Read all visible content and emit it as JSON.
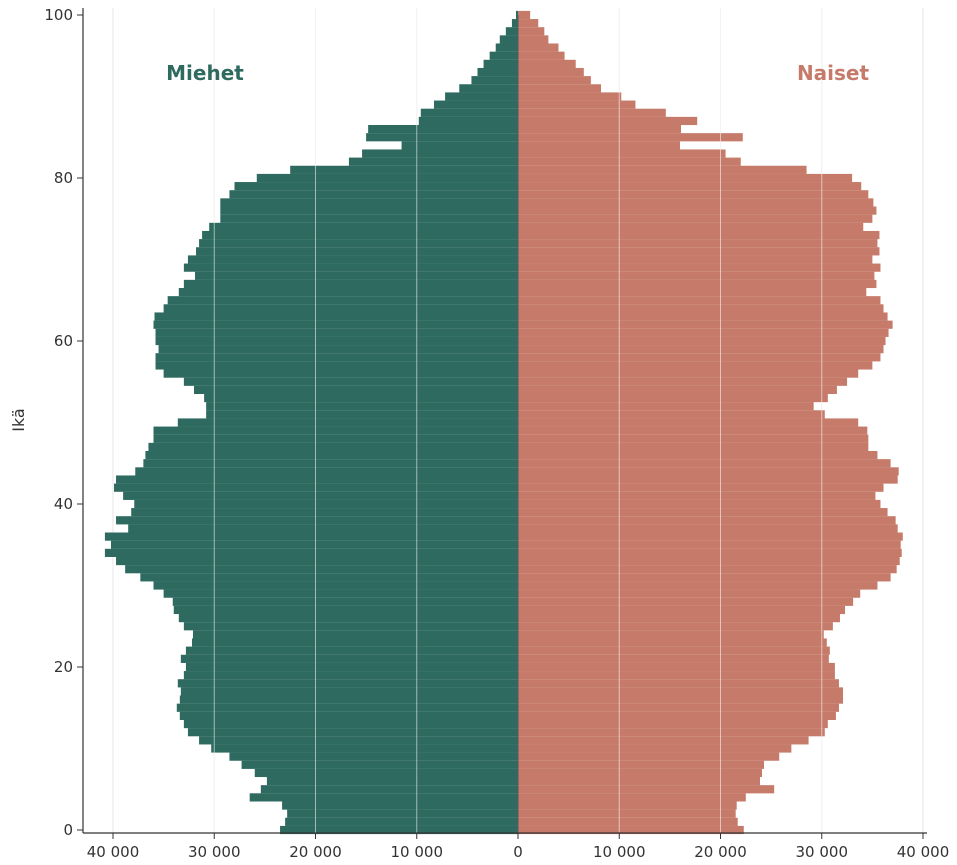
{
  "chart_data": {
    "type": "bar",
    "orientation": "horizontal",
    "subtype": "population-pyramid",
    "title": "",
    "ylabel": "Ikä",
    "xlabel": "",
    "xlim": [
      -40000,
      40000
    ],
    "ylim": [
      0,
      100
    ],
    "grid": "vertical",
    "x_ticks": [
      -40000,
      -30000,
      -20000,
      -10000,
      0,
      10000,
      20000,
      30000,
      40000
    ],
    "x_tick_labels": [
      "40 000",
      "30 000",
      "20 000",
      "10 000",
      "0",
      "10 000",
      "20 000",
      "30 000",
      "40 000"
    ],
    "y_ticks": [
      0,
      20,
      40,
      60,
      80,
      100
    ],
    "y_tick_labels": [
      "0",
      "20",
      "40",
      "60",
      "80",
      "100"
    ],
    "ages": [
      0,
      1,
      2,
      3,
      4,
      5,
      6,
      7,
      8,
      9,
      10,
      11,
      12,
      13,
      14,
      15,
      16,
      17,
      18,
      19,
      20,
      21,
      22,
      23,
      24,
      25,
      26,
      27,
      28,
      29,
      30,
      31,
      32,
      33,
      34,
      35,
      36,
      37,
      38,
      39,
      40,
      41,
      42,
      43,
      44,
      45,
      46,
      47,
      48,
      49,
      50,
      51,
      52,
      53,
      54,
      55,
      56,
      57,
      58,
      59,
      60,
      61,
      62,
      63,
      64,
      65,
      66,
      67,
      68,
      69,
      70,
      71,
      72,
      73,
      74,
      75,
      76,
      77,
      78,
      79,
      80,
      81,
      82,
      83,
      84,
      85,
      86,
      87,
      88,
      89,
      90,
      91,
      92,
      93,
      94,
      95,
      96,
      97,
      98,
      99,
      100
    ],
    "series": [
      {
        "name": "Miehet",
        "side": "left",
        "color": "#2e6a60",
        "values": [
          23500,
          23000,
          22800,
          23300,
          26500,
          25400,
          24800,
          26000,
          27300,
          28500,
          30300,
          31500,
          32600,
          33000,
          33400,
          33700,
          33400,
          33300,
          33600,
          33000,
          32800,
          33300,
          32800,
          32200,
          32100,
          33000,
          33500,
          34000,
          34100,
          35000,
          36000,
          37300,
          38800,
          39700,
          40800,
          40200,
          40800,
          38500,
          39700,
          38200,
          37900,
          39000,
          39900,
          39700,
          37800,
          37000,
          36800,
          36500,
          36000,
          36000,
          33600,
          30800,
          30800,
          31000,
          32000,
          33000,
          35000,
          35800,
          35800,
          35500,
          35800,
          35800,
          36000,
          35900,
          35000,
          34600,
          33500,
          33000,
          31900,
          33000,
          32600,
          31800,
          31500,
          31200,
          30500,
          29400,
          29400,
          29400,
          28500,
          28000,
          25800,
          22500,
          16700,
          15400,
          11500,
          15000,
          14800,
          9800,
          9600,
          8300,
          7200,
          5800,
          4600,
          4000,
          3400,
          2800,
          2200,
          1800,
          1200,
          600,
          200
        ]
      },
      {
        "name": "Naiset",
        "side": "right",
        "color": "#c67b6a",
        "values": [
          22300,
          21700,
          21500,
          21600,
          22500,
          25300,
          23900,
          24100,
          24300,
          25800,
          27000,
          28700,
          30300,
          30600,
          31400,
          31700,
          32100,
          32100,
          31700,
          31300,
          31300,
          30700,
          30800,
          30500,
          30200,
          31100,
          31800,
          32300,
          33100,
          33800,
          35500,
          36800,
          37400,
          37700,
          37900,
          37800,
          38000,
          37500,
          37300,
          36500,
          35800,
          35300,
          36100,
          37500,
          37600,
          36800,
          35500,
          34600,
          34600,
          34500,
          33600,
          30300,
          29200,
          30600,
          31500,
          32500,
          33600,
          35000,
          35800,
          36100,
          36300,
          36600,
          37000,
          36500,
          36100,
          35800,
          34400,
          35400,
          35200,
          35800,
          35000,
          35700,
          35500,
          35700,
          34100,
          35000,
          35400,
          35100,
          34600,
          33900,
          33000,
          28500,
          22000,
          20500,
          16000,
          22200,
          16100,
          17700,
          14600,
          11600,
          10200,
          8200,
          7200,
          6500,
          5700,
          4600,
          4000,
          3000,
          2600,
          2000,
          1200
        ]
      }
    ]
  }
}
